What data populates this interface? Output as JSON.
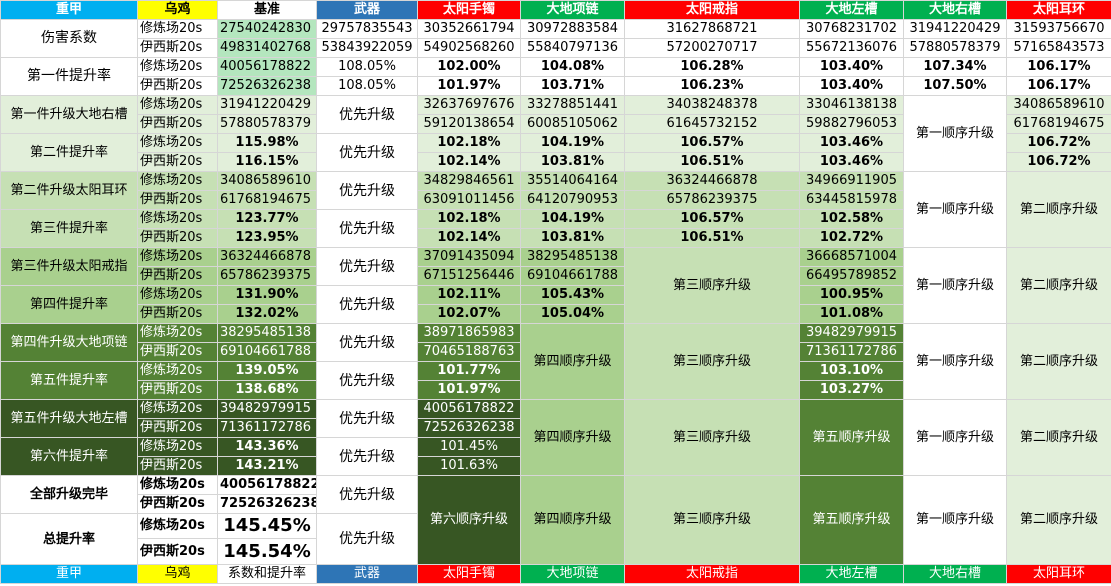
{
  "colors": {
    "blue": "#00aff0",
    "yellow": "#ffff00",
    "navy": "#2e75b6",
    "red": "#ff0000",
    "green": "#00b050",
    "lg1": "#e2efda",
    "lg2": "#c6e0b4",
    "lg3": "#a9d08e",
    "mg": "#548235",
    "dg": "#375623",
    "mintw": "#b4e6be"
  },
  "header": [
    "重甲",
    "乌鸡",
    "基准",
    "武器",
    "太阳手镯",
    "大地项链",
    "太阳戒指",
    "大地左槽",
    "大地右槽",
    "太阳耳环"
  ],
  "footer": [
    "重甲",
    "乌鸡",
    "系数和提升率",
    "武器",
    "太阳手镯",
    "大地项链",
    "太阳戒指",
    "大地左槽",
    "大地右槽",
    "太阳耳环"
  ],
  "labels": {
    "damage": "伤害系数",
    "rate1": "第一件提升率",
    "up1": "第一件升级大地右槽",
    "rate2": "第二件提升率",
    "up2": "第二件升级太阳耳环",
    "rate3": "第三件提升率",
    "up3": "第三件升级太阳戒指",
    "rate4": "第四件提升率",
    "up4": "第四件升级大地项链",
    "rate5": "第五件提升率",
    "up5": "第五件升级大地左槽",
    "rate6": "第六件提升率",
    "done": "全部升级完毕",
    "total": "总提升率",
    "xlc": "修炼场20s",
    "yxs": "伊西斯20s",
    "priority": "优先升级"
  },
  "orders": {
    "o1": "第一顺序升级",
    "o2": "第二顺序升级",
    "o3": "第三顺序升级",
    "o4": "第四顺序升级",
    "o5": "第五顺序升级",
    "o6": "第六顺序升级"
  },
  "rows": {
    "dmg_x": [
      "27540242830",
      "29757835543",
      "30352661794",
      "30972883584",
      "31627868721",
      "30768231702",
      "31941220429",
      "31593756670"
    ],
    "dmg_y": [
      "49831402768",
      "53843922059",
      "54902568260",
      "55840797136",
      "57200270717",
      "55672136076",
      "57880578379",
      "57165843573"
    ],
    "r1_x": [
      "40056178822",
      "108.05%",
      "102.00%",
      "104.08%",
      "106.28%",
      "103.40%",
      "107.34%",
      "106.17%"
    ],
    "r1_y": [
      "72526326238",
      "108.05%",
      "101.97%",
      "103.71%",
      "106.23%",
      "103.40%",
      "107.50%",
      "106.17%"
    ],
    "u1_x": [
      "31941220429",
      "32637697676",
      "33278851441",
      "34038248378",
      "33046138138",
      "34086589610"
    ],
    "u1_y": [
      "57880578379",
      "59120138654",
      "60085105062",
      "61645732152",
      "59882796053",
      "61768194675"
    ],
    "p2_x": [
      "115.98%",
      "102.18%",
      "104.19%",
      "106.57%",
      "103.46%",
      "106.72%"
    ],
    "p2_y": [
      "116.15%",
      "102.14%",
      "103.81%",
      "106.51%",
      "103.46%",
      "106.72%"
    ],
    "u2_x": [
      "34086589610",
      "34829846561",
      "35514064164",
      "36324466878",
      "34966911905"
    ],
    "u2_y": [
      "61768194675",
      "63091011456",
      "64120790953",
      "65786239375",
      "63445815978"
    ],
    "p3_x": [
      "123.77%",
      "102.18%",
      "104.19%",
      "106.57%",
      "102.58%"
    ],
    "p3_y": [
      "123.95%",
      "102.14%",
      "103.81%",
      "106.51%",
      "102.72%"
    ],
    "u3_x": [
      "36324466878",
      "37091435094",
      "38295485138",
      "36668571004"
    ],
    "u3_y": [
      "65786239375",
      "67151256446",
      "69104661788",
      "66495789852"
    ],
    "p4_x": [
      "131.90%",
      "102.11%",
      "105.43%",
      "100.95%"
    ],
    "p4_y": [
      "132.02%",
      "102.07%",
      "105.04%",
      "101.08%"
    ],
    "u4_x": [
      "38295485138",
      "38971865983",
      "39482979915"
    ],
    "u4_y": [
      "69104661788",
      "70465188763",
      "71361172786"
    ],
    "p5_x": [
      "139.05%",
      "101.77%",
      "103.10%"
    ],
    "p5_y": [
      "138.68%",
      "101.97%",
      "103.27%"
    ],
    "u5_x": [
      "39482979915",
      "40056178822"
    ],
    "u5_y": [
      "71361172786",
      "72526326238"
    ],
    "p6_x": [
      "143.36%",
      "101.45%"
    ],
    "p6_y": [
      "143.21%",
      "101.63%"
    ],
    "done_x": "40056178822",
    "done_y": "72526326238",
    "tot_x": "145.45%",
    "tot_y": "145.54%"
  }
}
